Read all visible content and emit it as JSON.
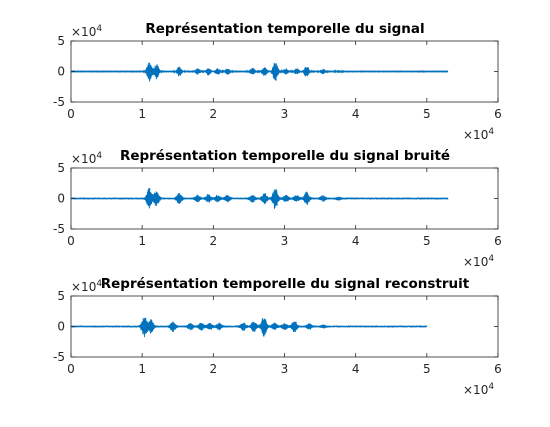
{
  "figure": {
    "accent_color": "#0072bd",
    "axes_color": "#262626"
  },
  "chart_data": [
    {
      "type": "line",
      "title": "Représentation temporelle du signal",
      "xlabel": "",
      "ylabel": "",
      "xlim": [
        0,
        60000
      ],
      "ylim": [
        -50000,
        50000
      ],
      "xticks": [
        0,
        10000,
        20000,
        30000,
        40000,
        50000,
        60000
      ],
      "xtick_labels": [
        "0",
        "1",
        "2",
        "3",
        "4",
        "5",
        "6"
      ],
      "yticks": [
        -50000,
        0,
        50000
      ],
      "ytick_labels": [
        "-5",
        "0",
        "5"
      ],
      "x_exponent": {
        "base": "×10",
        "power": "4"
      },
      "y_exponent": {
        "base": "×10",
        "power": "4"
      },
      "grid": false,
      "series": [
        {
          "x_end": 53000,
          "noise_amplitude": 500,
          "bursts": [
            {
              "x": 11000,
              "amplitude": 16000
            },
            {
              "x": 12000,
              "amplitude": 12000
            },
            {
              "x": 15200,
              "amplitude": 8000
            },
            {
              "x": 17800,
              "amplitude": 5000
            },
            {
              "x": 19300,
              "amplitude": 6000
            },
            {
              "x": 20600,
              "amplitude": 5000
            },
            {
              "x": 22000,
              "amplitude": 5000
            },
            {
              "x": 25500,
              "amplitude": 6000
            },
            {
              "x": 27200,
              "amplitude": 8000
            },
            {
              "x": 28700,
              "amplitude": 17000
            },
            {
              "x": 30200,
              "amplitude": 5000
            },
            {
              "x": 31700,
              "amplitude": 5000
            },
            {
              "x": 33100,
              "amplitude": 10000
            },
            {
              "x": 35400,
              "amplitude": 4000
            },
            {
              "x": 37600,
              "amplitude": 2000
            }
          ]
        }
      ]
    },
    {
      "type": "line",
      "title": "Représentation temporelle du signal bruité",
      "xlabel": "",
      "ylabel": "",
      "xlim": [
        0,
        60000
      ],
      "ylim": [
        -50000,
        50000
      ],
      "xticks": [
        0,
        10000,
        20000,
        30000,
        40000,
        50000,
        60000
      ],
      "xtick_labels": [
        "0",
        "1",
        "2",
        "3",
        "4",
        "5",
        "6"
      ],
      "yticks": [
        -50000,
        0,
        50000
      ],
      "ytick_labels": [
        "-5",
        "0",
        "5"
      ],
      "x_exponent": {
        "base": "×10",
        "power": "4"
      },
      "y_exponent": {
        "base": "×10",
        "power": "4"
      },
      "grid": false,
      "series": [
        {
          "x_end": 53000,
          "noise_amplitude": 1500,
          "bursts": [
            {
              "x": 11000,
              "amplitude": 16000
            },
            {
              "x": 12000,
              "amplitude": 12000
            },
            {
              "x": 15200,
              "amplitude": 8000
            },
            {
              "x": 17800,
              "amplitude": 5000
            },
            {
              "x": 19300,
              "amplitude": 6000
            },
            {
              "x": 20600,
              "amplitude": 5000
            },
            {
              "x": 22000,
              "amplitude": 5000
            },
            {
              "x": 25500,
              "amplitude": 6000
            },
            {
              "x": 27200,
              "amplitude": 8000
            },
            {
              "x": 28700,
              "amplitude": 17000
            },
            {
              "x": 30200,
              "amplitude": 5000
            },
            {
              "x": 31700,
              "amplitude": 5000
            },
            {
              "x": 33100,
              "amplitude": 10000
            },
            {
              "x": 35400,
              "amplitude": 4000
            },
            {
              "x": 37600,
              "amplitude": 2000
            }
          ]
        }
      ]
    },
    {
      "type": "line",
      "title": "Représentation temporelle du signal reconstruit",
      "xlabel": "",
      "ylabel": "",
      "xlim": [
        0,
        60000
      ],
      "ylim": [
        -50000,
        50000
      ],
      "xticks": [
        0,
        10000,
        20000,
        30000,
        40000,
        50000,
        60000
      ],
      "xtick_labels": [
        "0",
        "1",
        "2",
        "3",
        "4",
        "5",
        "6"
      ],
      "yticks": [
        -50000,
        0,
        50000
      ],
      "ytick_labels": [
        "-5",
        "0",
        "5"
      ],
      "x_exponent": {
        "base": "×10",
        "power": "4"
      },
      "y_exponent": {
        "base": "×10",
        "power": "4"
      },
      "grid": false,
      "series": [
        {
          "x_end": 50000,
          "noise_amplitude": 1500,
          "bursts": [
            {
              "x": 10300,
              "amplitude": 16000
            },
            {
              "x": 11200,
              "amplitude": 11000
            },
            {
              "x": 14300,
              "amplitude": 8000
            },
            {
              "x": 16800,
              "amplitude": 5000
            },
            {
              "x": 18300,
              "amplitude": 6000
            },
            {
              "x": 19500,
              "amplitude": 5000
            },
            {
              "x": 20800,
              "amplitude": 5000
            },
            {
              "x": 24200,
              "amplitude": 6000
            },
            {
              "x": 25700,
              "amplitude": 8000
            },
            {
              "x": 27100,
              "amplitude": 16000
            },
            {
              "x": 28600,
              "amplitude": 5000
            },
            {
              "x": 30000,
              "amplitude": 5000
            },
            {
              "x": 31400,
              "amplitude": 9000
            },
            {
              "x": 33500,
              "amplitude": 4000
            },
            {
              "x": 35500,
              "amplitude": 2000
            }
          ]
        }
      ]
    }
  ]
}
